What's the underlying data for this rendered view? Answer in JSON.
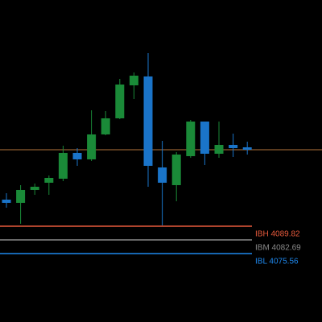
{
  "chart_data": {
    "type": "candlestick",
    "ylim": [
      4039.9,
      4207.67
    ],
    "up_color": "#1a8a38",
    "down_color": "#1a74c9",
    "open": [
      4103.66,
      4101.98,
      4108.69,
      4112.46,
      4114.56,
      4127.99,
      4124.63,
      4137.63,
      4146.02,
      4163.21,
      4167.83,
      4120.43,
      4111.21,
      4126.31,
      4144.34,
      4127.57,
      4132.18,
      4130.92
    ],
    "close": [
      4101.98,
      4108.69,
      4110.37,
      4114.98,
      4127.99,
      4124.63,
      4137.63,
      4146.02,
      4163.63,
      4168.25,
      4121.27,
      4112.46,
      4127.15,
      4144.34,
      4127.57,
      4132.18,
      4130.5,
      4129.66
    ],
    "high": [
      4107.01,
      4111.21,
      4112.05,
      4116.24,
      4131.76,
      4130.5,
      4150.21,
      4149.79,
      4166.57,
      4169.92,
      4179.99,
      4134.27,
      4128.41,
      4145.18,
      4144.34,
      4144.34,
      4138.05,
      4133.86
    ],
    "low": [
      4099.46,
      4091.08,
      4106.17,
      4106.17,
      4113.3,
      4121.27,
      4123.79,
      4137.21,
      4145.6,
      4156.08,
      4110.37,
      4090.24,
      4102.82,
      4125.47,
      4121.69,
      4125.47,
      4125.89,
      4127.15
    ],
    "reference_line": {
      "value": 4129.66,
      "color": "#b5743c"
    },
    "levels": [
      {
        "label": "IBH 4089.82",
        "value": 4089.82,
        "color": "#e85a3c"
      },
      {
        "label": "IBM 4082.69",
        "value": 4082.69,
        "color": "#8a8a8a"
      },
      {
        "label": "IBL 4075.56",
        "value": 4075.56,
        "color": "#1e88ee"
      }
    ]
  }
}
